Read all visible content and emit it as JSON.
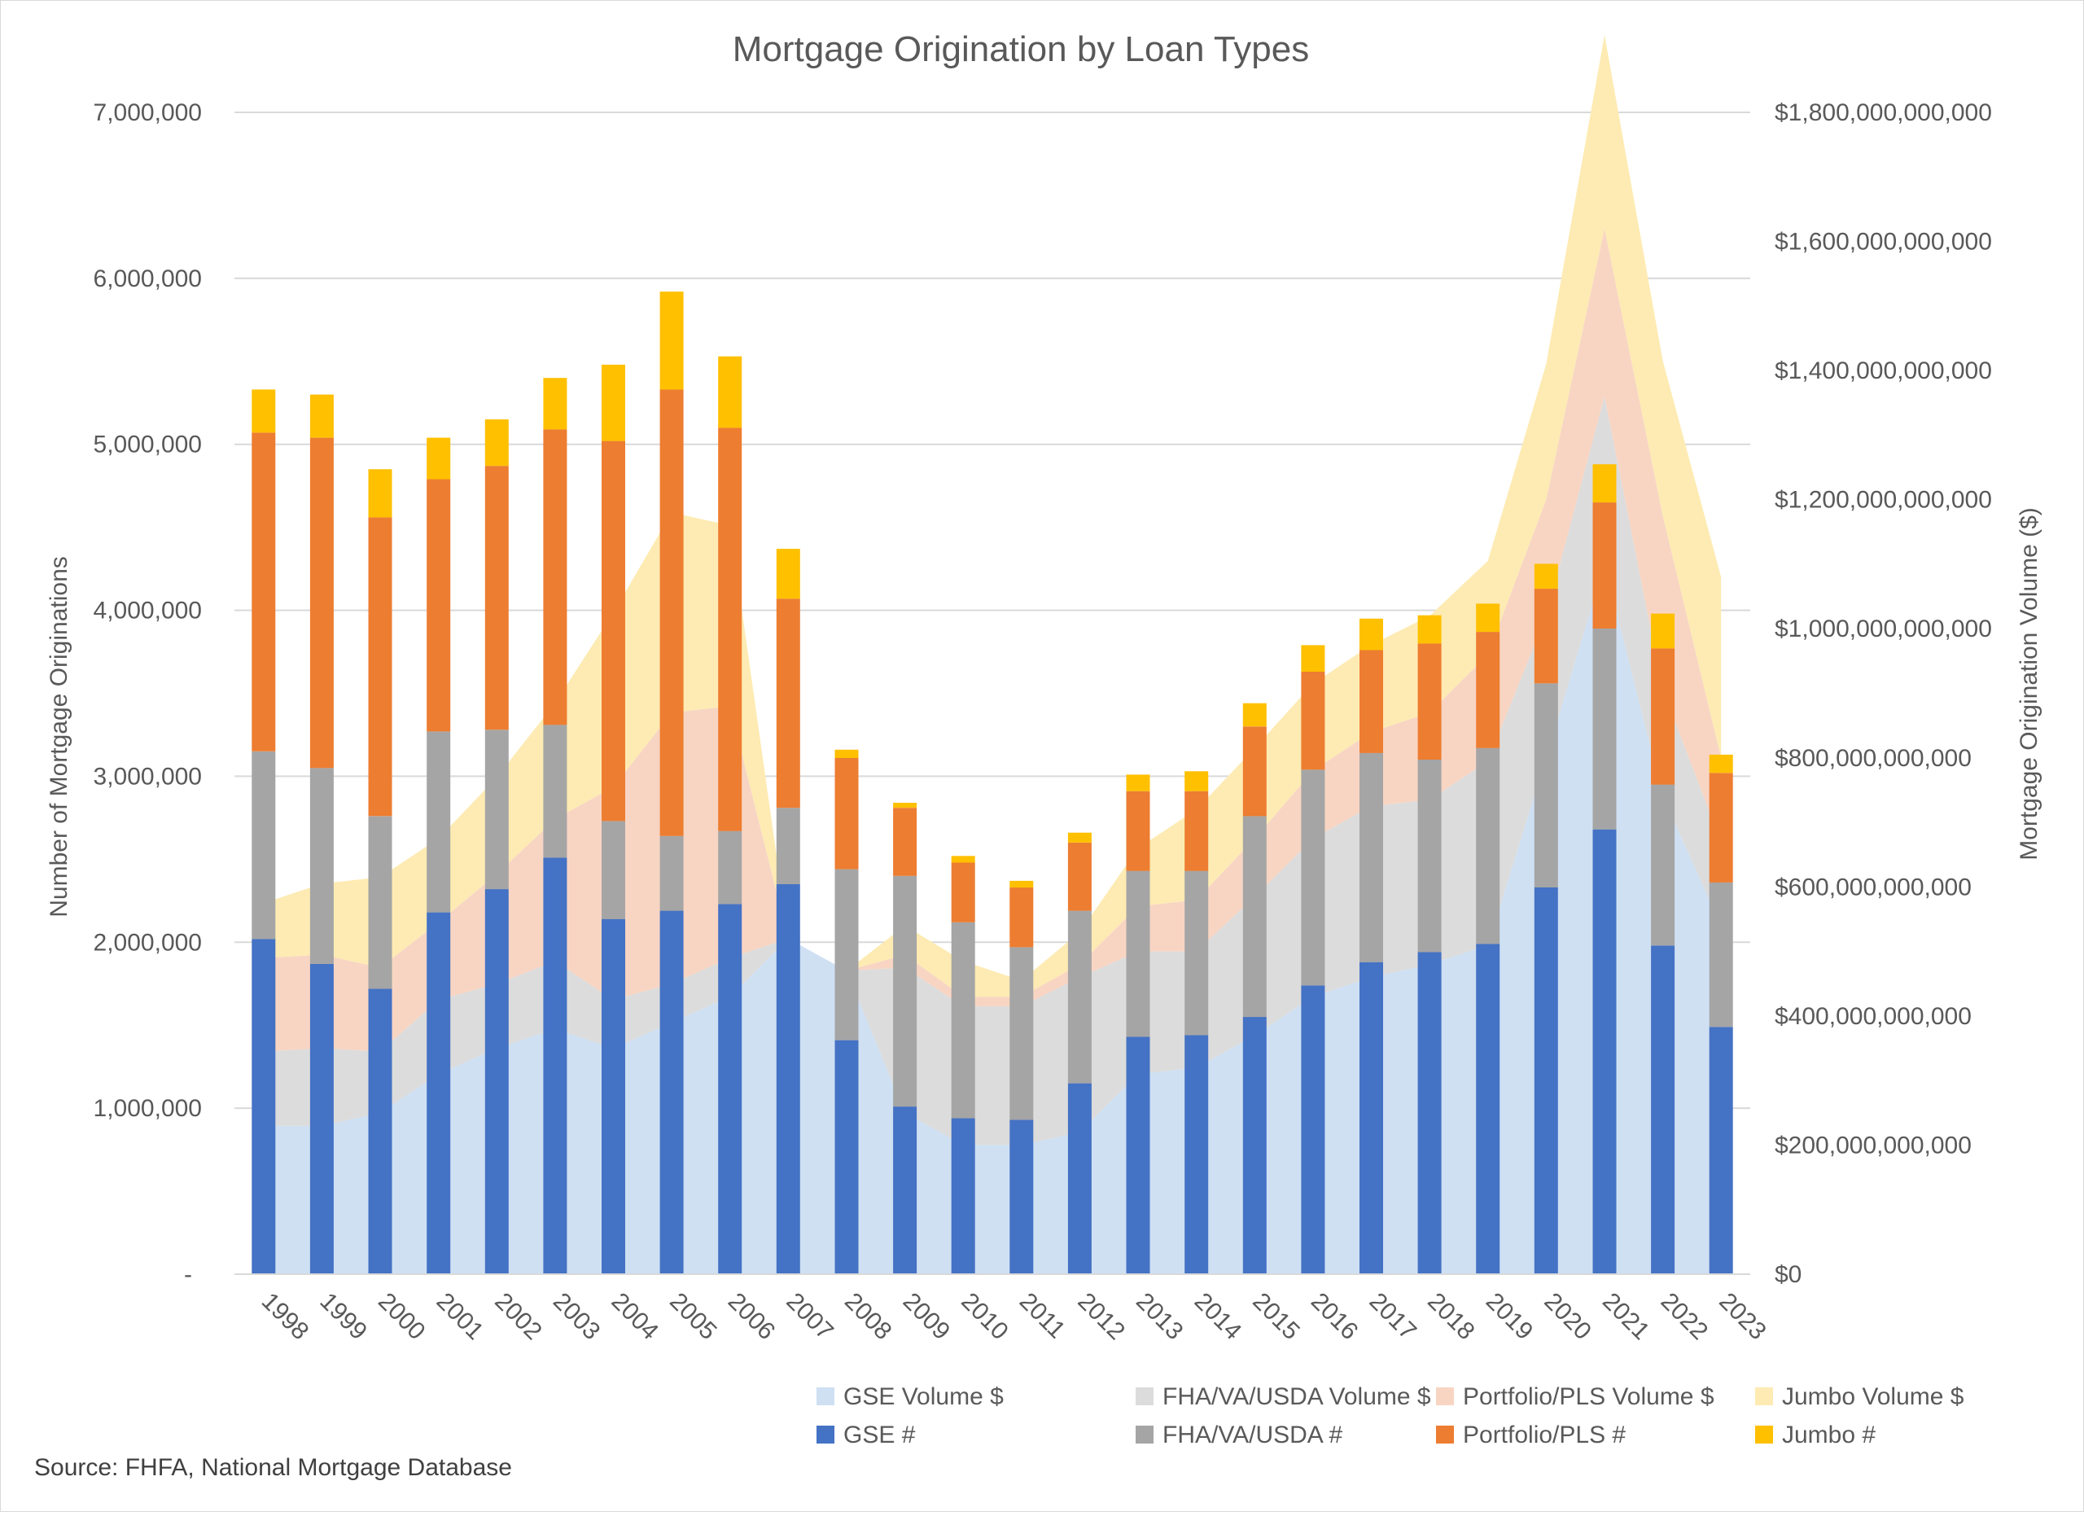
{
  "chart_data": {
    "type": "bar",
    "title": "Mortgage Origination by Loan Types",
    "source": "Source: FHFA, National Mortgage Database",
    "ylabel_left": "Number of Mortgage Originations",
    "ylabel_right": "Mortgage Origination Volume ($)",
    "ylim_left": [
      0,
      7000000
    ],
    "ylim_right": [
      0,
      1800000000000
    ],
    "yticks_left": [
      "-",
      "1,000,000",
      "2,000,000",
      "3,000,000",
      "4,000,000",
      "5,000,000",
      "6,000,000",
      "7,000,000"
    ],
    "yticks_right": [
      "$0",
      "$200,000,000,000",
      "$400,000,000,000",
      "$600,000,000,000",
      "$800,000,000,000",
      "$1,000,000,000,000",
      "$1,200,000,000,000",
      "$1,400,000,000,000",
      "$1,600,000,000,000",
      "$1,800,000,000,000"
    ],
    "gridlines": true,
    "legend_position": "bottom-right",
    "categories": [
      "1998",
      "1999",
      "2000",
      "2001",
      "2002",
      "2003",
      "2004",
      "2005",
      "2006",
      "2007",
      "2008",
      "2009",
      "2010",
      "2011",
      "2012",
      "2013",
      "2014",
      "2015",
      "2016",
      "2017",
      "2018",
      "2019",
      "2020",
      "2021",
      "2022",
      "2023"
    ],
    "bar_series": [
      {
        "name": "GSE #",
        "color": "#4472C4",
        "values": [
          2020000,
          1870000,
          1720000,
          2180000,
          2320000,
          2510000,
          2140000,
          2190000,
          2230000,
          2350000,
          1410000,
          1010000,
          940000,
          930000,
          1150000,
          1430000,
          1440000,
          1550000,
          1740000,
          1880000,
          1940000,
          1990000,
          2330000,
          2680000,
          1980000,
          1490000
        ]
      },
      {
        "name": "FHA/VA/USDA #",
        "color": "#A5A5A5",
        "values": [
          1130000,
          1180000,
          1040000,
          1090000,
          960000,
          800000,
          590000,
          450000,
          440000,
          460000,
          1030000,
          1390000,
          1180000,
          1040000,
          1040000,
          1000000,
          990000,
          1210000,
          1300000,
          1260000,
          1160000,
          1180000,
          1230000,
          1210000,
          970000,
          870000
        ]
      },
      {
        "name": "Portfolio/PLS #",
        "color": "#ED7D31",
        "values": [
          1920000,
          1990000,
          1800000,
          1520000,
          1590000,
          1780000,
          2290000,
          2690000,
          2430000,
          1260000,
          670000,
          410000,
          360000,
          360000,
          410000,
          480000,
          480000,
          540000,
          590000,
          620000,
          700000,
          700000,
          570000,
          760000,
          820000,
          660000
        ]
      },
      {
        "name": "Jumbo #",
        "color": "#FFC000",
        "values": [
          260000,
          260000,
          290000,
          250000,
          280000,
          310000,
          460000,
          590000,
          430000,
          300000,
          50000,
          30000,
          40000,
          40000,
          60000,
          100000,
          120000,
          140000,
          160000,
          190000,
          170000,
          170000,
          150000,
          230000,
          210000,
          110000
        ]
      }
    ],
    "area_series": [
      {
        "name": "GSE Volume $",
        "color": "#CFE0F3",
        "values": [
          230000000000,
          230000000000,
          250000000000,
          310000000000,
          350000000000,
          380000000000,
          350000000000,
          390000000000,
          430000000000,
          520000000000,
          470000000000,
          250000000000,
          200000000000,
          200000000000,
          220000000000,
          310000000000,
          320000000000,
          370000000000,
          430000000000,
          460000000000,
          480000000000,
          510000000000,
          800000000000,
          1100000000000,
          740000000000,
          540000000000
        ]
      },
      {
        "name": "FHA/VA/USDA Volume $",
        "color": "#DCDCDC",
        "values": [
          115000000000,
          120000000000,
          95000000000,
          115000000000,
          100000000000,
          105000000000,
          75000000000,
          60000000000,
          60000000000,
          0,
          0,
          225000000000,
          215000000000,
          215000000000,
          240000000000,
          190000000000,
          180000000000,
          215000000000,
          245000000000,
          265000000000,
          255000000000,
          285000000000,
          220000000000,
          260000000000,
          165000000000,
          130000000000
        ]
      },
      {
        "name": "Portfolio/PLS Volume $",
        "color": "#F8D5C3",
        "values": [
          145000000000,
          145000000000,
          130000000000,
          120000000000,
          170000000000,
          220000000000,
          330000000000,
          420000000000,
          390000000000,
          0,
          0,
          20000000000,
          15000000000,
          15000000000,
          20000000000,
          70000000000,
          80000000000,
          90000000000,
          105000000000,
          115000000000,
          135000000000,
          165000000000,
          180000000000,
          260000000000,
          270000000000,
          130000000000
        ]
      },
      {
        "name": "Jumbo Volume $",
        "color": "#FDEBB3",
        "values": [
          85000000000,
          110000000000,
          140000000000,
          130000000000,
          150000000000,
          180000000000,
          270000000000,
          310000000000,
          280000000000,
          0,
          0,
          45000000000,
          55000000000,
          25000000000,
          50000000000,
          90000000000,
          140000000000,
          140000000000,
          135000000000,
          135000000000,
          150000000000,
          145000000000,
          210000000000,
          300000000000,
          240000000000,
          280000000000
        ]
      }
    ],
    "legend": [
      "GSE Volume $",
      "FHA/VA/USDA Volume $",
      "Portfolio/PLS Volume $",
      "Jumbo Volume $",
      "GSE #",
      "FHA/VA/USDA #",
      "Portfolio/PLS #",
      "Jumbo #"
    ]
  }
}
